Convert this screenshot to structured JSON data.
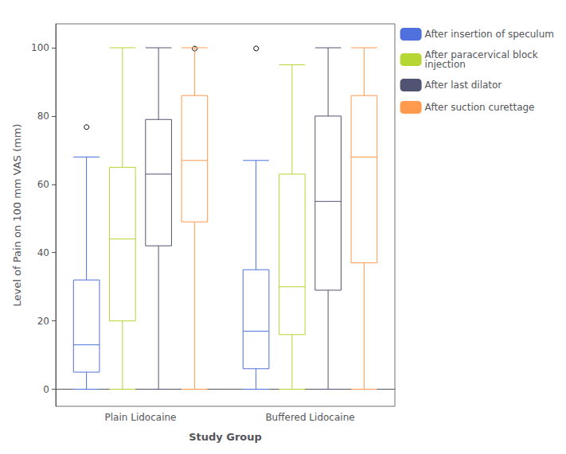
{
  "chart_data": {
    "type": "boxplot",
    "xlabel": "Study Group",
    "ylabel": "Level of Pain on 100 mm VAS (mm)",
    "categories": [
      "Plain Lidocaine",
      "Buffered Lidocaine"
    ],
    "series": [
      {
        "name": "After insertion of speculum",
        "values": [
          [
            0,
            5,
            13,
            32,
            68
          ],
          [
            0,
            6,
            17,
            35,
            67
          ]
        ],
        "fliers": [
          [
            77
          ],
          [
            100
          ]
        ]
      },
      {
        "name": "After paracervical block\ninjection",
        "values": [
          [
            0,
            20,
            44,
            65,
            100
          ],
          [
            0,
            16,
            30,
            63,
            95
          ]
        ],
        "fliers": [
          [],
          []
        ]
      },
      {
        "name": "After last dilator",
        "values": [
          [
            0,
            42,
            63,
            79,
            100
          ],
          [
            0,
            29,
            55,
            80,
            100
          ]
        ],
        "fliers": [
          [],
          []
        ]
      },
      {
        "name": "After suction curettage",
        "values": [
          [
            0,
            49,
            67,
            86,
            100
          ],
          [
            0,
            37,
            68,
            86,
            100
          ]
        ],
        "fliers": [
          [
            100
          ],
          []
        ]
      }
    ],
    "ylim": [
      -5,
      107
    ],
    "yticks": [
      0,
      20,
      40,
      60,
      80,
      100
    ],
    "grid": false,
    "legend": "upper right"
  }
}
